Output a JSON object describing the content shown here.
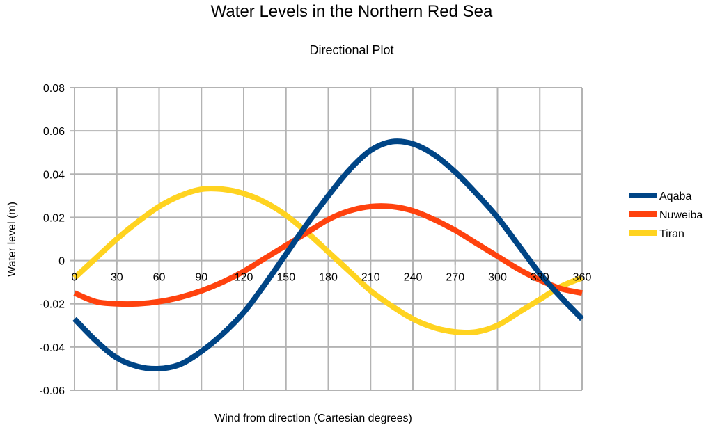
{
  "chart_data": {
    "type": "line",
    "title": "Water Levels in the Northern Red Sea",
    "subtitle": "Directional Plot",
    "xlabel": "Wind from direction (Cartesian degrees)",
    "ylabel": "Water level (m)",
    "xlim": [
      0,
      360
    ],
    "ylim": [
      -0.06,
      0.08
    ],
    "x_ticks": [
      0,
      30,
      60,
      90,
      120,
      150,
      180,
      210,
      240,
      270,
      300,
      330,
      360
    ],
    "y_ticks": [
      -0.06,
      -0.04,
      -0.02,
      0,
      0.02,
      0.04,
      0.06,
      0.08
    ],
    "grid": true,
    "legend_position": "right",
    "series": [
      {
        "name": "Aqaba",
        "color": "#004586",
        "x": [
          0,
          15,
          30,
          45,
          60,
          75,
          90,
          105,
          120,
          135,
          150,
          165,
          180,
          195,
          210,
          225,
          240,
          255,
          270,
          285,
          300,
          315,
          330,
          345,
          360
        ],
        "values": [
          -0.027,
          -0.037,
          -0.045,
          -0.049,
          -0.05,
          -0.048,
          -0.042,
          -0.034,
          -0.024,
          -0.011,
          0.003,
          0.017,
          0.03,
          0.042,
          0.051,
          0.055,
          0.054,
          0.049,
          0.041,
          0.031,
          0.02,
          0.007,
          -0.006,
          -0.017,
          -0.027
        ]
      },
      {
        "name": "Nuweiba",
        "color": "#ff420e",
        "x": [
          0,
          15,
          30,
          45,
          60,
          75,
          90,
          105,
          120,
          135,
          150,
          165,
          180,
          195,
          210,
          225,
          240,
          255,
          270,
          285,
          300,
          315,
          330,
          345,
          360
        ],
        "values": [
          -0.015,
          -0.019,
          -0.02,
          -0.02,
          -0.019,
          -0.017,
          -0.014,
          -0.01,
          -0.005,
          0.001,
          0.007,
          0.013,
          0.019,
          0.023,
          0.025,
          0.025,
          0.023,
          0.019,
          0.014,
          0.008,
          0.002,
          -0.004,
          -0.009,
          -0.013,
          -0.015
        ]
      },
      {
        "name": "Tiran",
        "color": "#ffd320",
        "x": [
          0,
          15,
          30,
          45,
          60,
          75,
          90,
          105,
          120,
          135,
          150,
          165,
          180,
          195,
          210,
          225,
          240,
          255,
          270,
          285,
          300,
          315,
          330,
          345,
          360
        ],
        "values": [
          -0.008,
          0.001,
          0.01,
          0.018,
          0.025,
          0.03,
          0.033,
          0.033,
          0.031,
          0.027,
          0.021,
          0.013,
          0.004,
          -0.005,
          -0.014,
          -0.021,
          -0.027,
          -0.031,
          -0.033,
          -0.033,
          -0.03,
          -0.024,
          -0.018,
          -0.012,
          -0.008
        ]
      }
    ]
  }
}
